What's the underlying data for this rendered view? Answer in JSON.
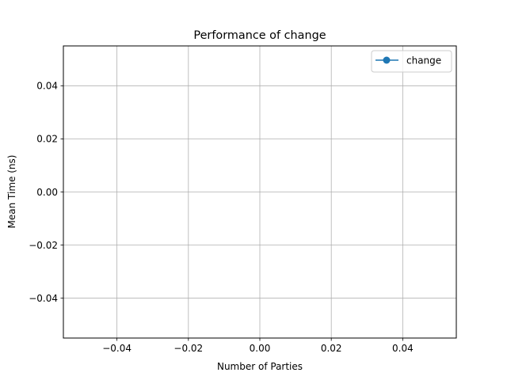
{
  "chart_data": {
    "type": "line",
    "title": "Performance of change",
    "xlabel": "Number of Parties",
    "ylabel": "Mean Time (ns)",
    "xlim": [
      -0.055,
      0.055
    ],
    "ylim": [
      -0.055,
      0.055
    ],
    "xticks": [
      -0.04,
      -0.02,
      0.0,
      0.02,
      0.04
    ],
    "yticks": [
      -0.04,
      -0.02,
      0.0,
      0.02,
      0.04
    ],
    "xtick_labels": [
      "−0.04",
      "−0.02",
      "0.00",
      "0.02",
      "0.04"
    ],
    "ytick_labels": [
      "−0.04",
      "−0.02",
      "0.00",
      "0.02",
      "0.04"
    ],
    "grid": true,
    "legend_position": "upper right",
    "series": [
      {
        "name": "change",
        "x": [],
        "y": [],
        "color": "#1f77b4",
        "marker": "circle"
      }
    ]
  }
}
